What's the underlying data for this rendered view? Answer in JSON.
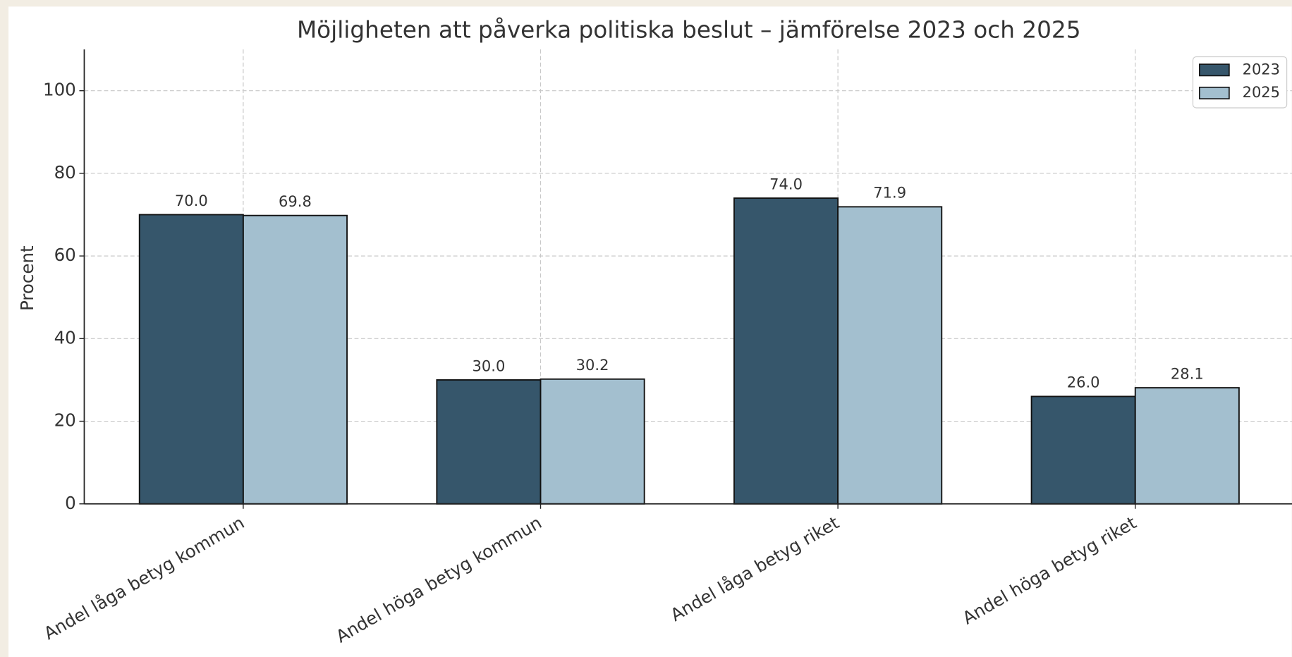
{
  "chart_data": {
    "type": "bar",
    "title": "Möjligheten att påverka politiska beslut – jämförelse 2023 och 2025",
    "y_label": "Procent",
    "categories": [
      "Andel låga betyg kommun",
      "Andel höga betyg kommun",
      "Andel låga betyg riket",
      "Andel höga betyg riket"
    ],
    "series": [
      {
        "name": "2023",
        "color": "#36566b",
        "values": [
          70,
          30,
          74,
          26
        ],
        "value_labels": [
          "70.0",
          "30.0",
          "74.0",
          "26.0"
        ]
      },
      {
        "name": "2025",
        "color": "#a3bfcf",
        "values": [
          69.8,
          30.2,
          71.9,
          28.1
        ],
        "value_labels": [
          "69.8",
          "30.2",
          "71.9",
          "28.1"
        ]
      }
    ],
    "ylim": [
      0,
      110
    ],
    "yticks": [
      0,
      20,
      40,
      60,
      80,
      100
    ],
    "grid": true,
    "legend": "upper right"
  }
}
